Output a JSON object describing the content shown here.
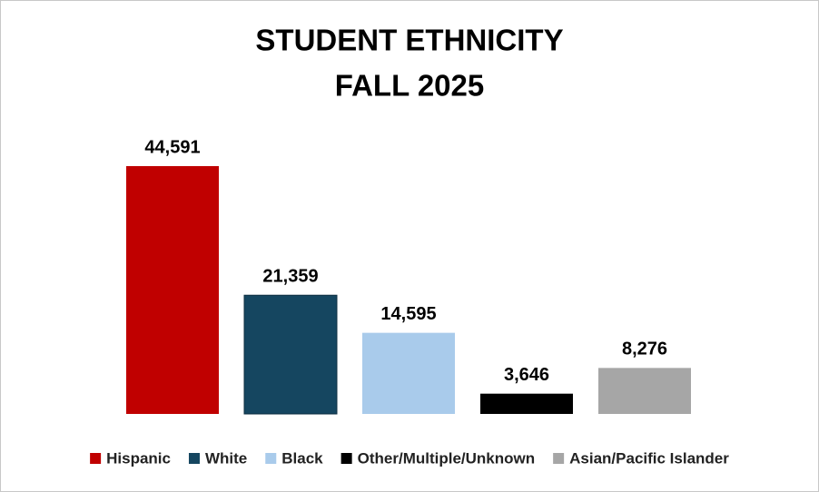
{
  "chart_data": {
    "type": "bar",
    "title": "STUDENT ETHNICITY",
    "subtitle": "FALL 2025",
    "series": [
      {
        "name": "Hispanic",
        "color": "#c00000",
        "values": [
          44591
        ],
        "value_labels": [
          "44,591"
        ]
      },
      {
        "name": "White",
        "color": "#154660",
        "values": [
          21359
        ],
        "value_labels": [
          "21,359"
        ]
      },
      {
        "name": "Black",
        "color": "#a9cbeb",
        "values": [
          14595
        ],
        "value_labels": [
          "14,595"
        ]
      },
      {
        "name": "Other/Multiple/Unknown",
        "color": "#000000",
        "values": [
          3646
        ],
        "value_labels": [
          "3,646"
        ]
      },
      {
        "name": "Asian/Pacific Islander",
        "color": "#a6a6a6",
        "values": [
          8276
        ],
        "value_labels": [
          "8,276"
        ]
      }
    ],
    "legend": "bottom"
  }
}
